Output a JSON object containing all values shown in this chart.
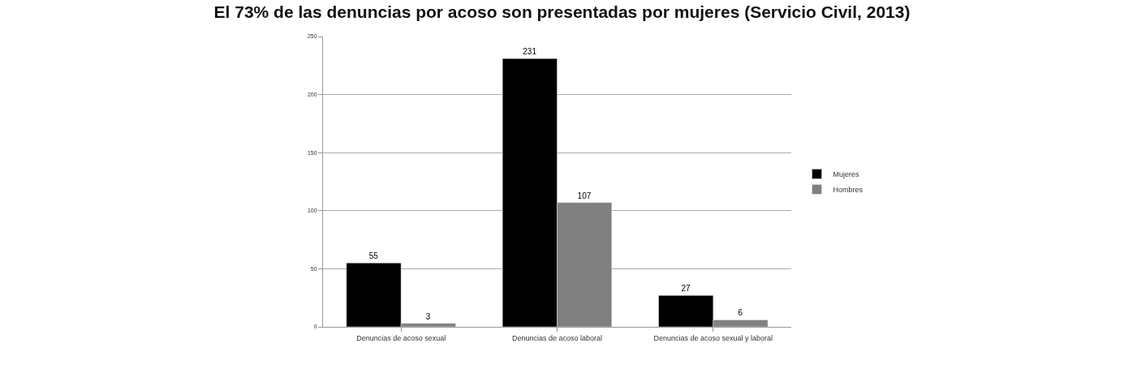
{
  "chart_data": {
    "type": "bar",
    "title": "El 73% de las denuncias por acoso son presentadas por mujeres (Servicio Civil, 2013)",
    "categories": [
      "Denuncias de acoso sexual",
      "Denuncias de acoso laboral",
      "Denuncias de acoso sexual y laboral"
    ],
    "series": [
      {
        "name": "Mujeres",
        "color": "#000000",
        "values": [
          55,
          231,
          27
        ]
      },
      {
        "name": "Hombres",
        "color": "#808080",
        "values": [
          3,
          107,
          6
        ]
      }
    ],
    "ylim": [
      0,
      250
    ],
    "yticks": [
      0,
      50,
      100,
      150,
      200,
      250
    ],
    "grid": "y",
    "legend": "right",
    "data_labels": true
  }
}
